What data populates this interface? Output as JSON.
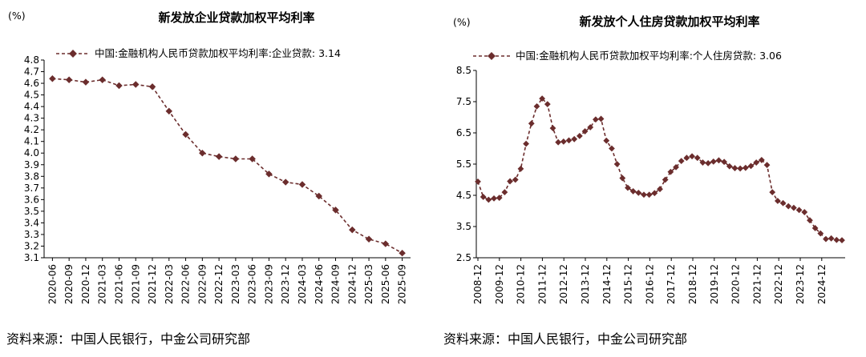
{
  "colors": {
    "series": "#6b2d2d",
    "axis": "#000000"
  },
  "chart_data": [
    {
      "type": "line",
      "title": "新发放企业贷款加权平均利率",
      "unit_label": "(%)",
      "legend": "中国:金融机构人民币贷款加权平均利率:企业贷款: 3.14",
      "ylim": [
        3.1,
        4.8
      ],
      "yticks": [
        "3.1",
        "3.2",
        "3.3",
        "3.4",
        "3.5",
        "3.6",
        "3.7",
        "3.8",
        "3.9",
        "4.0",
        "4.1",
        "4.2",
        "4.3",
        "4.4",
        "4.5",
        "4.6",
        "4.7",
        "4.8"
      ],
      "categories": [
        "2020-06",
        "2020-09",
        "2020-12",
        "2021-03",
        "2021-06",
        "2021-09",
        "2021-12",
        "2022-03",
        "2022-06",
        "2022-09",
        "2022-12",
        "2023-03",
        "2023-06",
        "2023-09",
        "2023-12",
        "2024-03",
        "2024-06",
        "2024-09",
        "2024-12",
        "2025-03",
        "2025-06",
        "2025-09"
      ],
      "values": [
        4.64,
        4.63,
        4.61,
        4.63,
        4.58,
        4.59,
        4.57,
        4.36,
        4.16,
        4.0,
        3.97,
        3.95,
        3.95,
        3.82,
        3.75,
        3.73,
        3.63,
        3.51,
        3.34,
        3.26,
        3.22,
        3.14
      ],
      "source": "资料来源：中国人民银行，中金公司研究部"
    },
    {
      "type": "line",
      "title": "新发放个人住房贷款加权平均利率",
      "unit_label": "(%)",
      "legend": "中国:金融机构人民币贷款加权平均利率:个人住房贷款: 3.06",
      "ylim": [
        2.5,
        8.5
      ],
      "yticks": [
        "2.5",
        "3.5",
        "4.5",
        "5.5",
        "6.5",
        "7.5",
        "8.5"
      ],
      "tick_labels": [
        "2008-12",
        "2009-12",
        "2010-12",
        "2011-12",
        "2012-12",
        "2013-12",
        "2014-12",
        "2015-12",
        "2016-12",
        "2017-12",
        "2018-12",
        "2019-12",
        "2020-12",
        "2021-12",
        "2022-12",
        "2023-12",
        "2024-12"
      ],
      "values": [
        4.94,
        4.45,
        4.36,
        4.4,
        4.42,
        4.6,
        4.95,
        5.0,
        5.35,
        6.15,
        6.8,
        7.35,
        7.6,
        7.42,
        6.65,
        6.2,
        6.22,
        6.26,
        6.3,
        6.4,
        6.55,
        6.68,
        6.93,
        6.95,
        6.25,
        6.0,
        5.5,
        5.05,
        4.74,
        4.63,
        4.58,
        4.52,
        4.52,
        4.57,
        4.7,
        5.0,
        5.25,
        5.4,
        5.6,
        5.7,
        5.75,
        5.7,
        5.55,
        5.53,
        5.58,
        5.62,
        5.57,
        5.43,
        5.37,
        5.36,
        5.38,
        5.44,
        5.55,
        5.63,
        5.47,
        4.6,
        4.32,
        4.25,
        4.15,
        4.1,
        4.03,
        3.96,
        3.7,
        3.45,
        3.28,
        3.1,
        3.12,
        3.07,
        3.06
      ],
      "source": "资料来源：中国人民银行，中金公司研究部"
    }
  ]
}
